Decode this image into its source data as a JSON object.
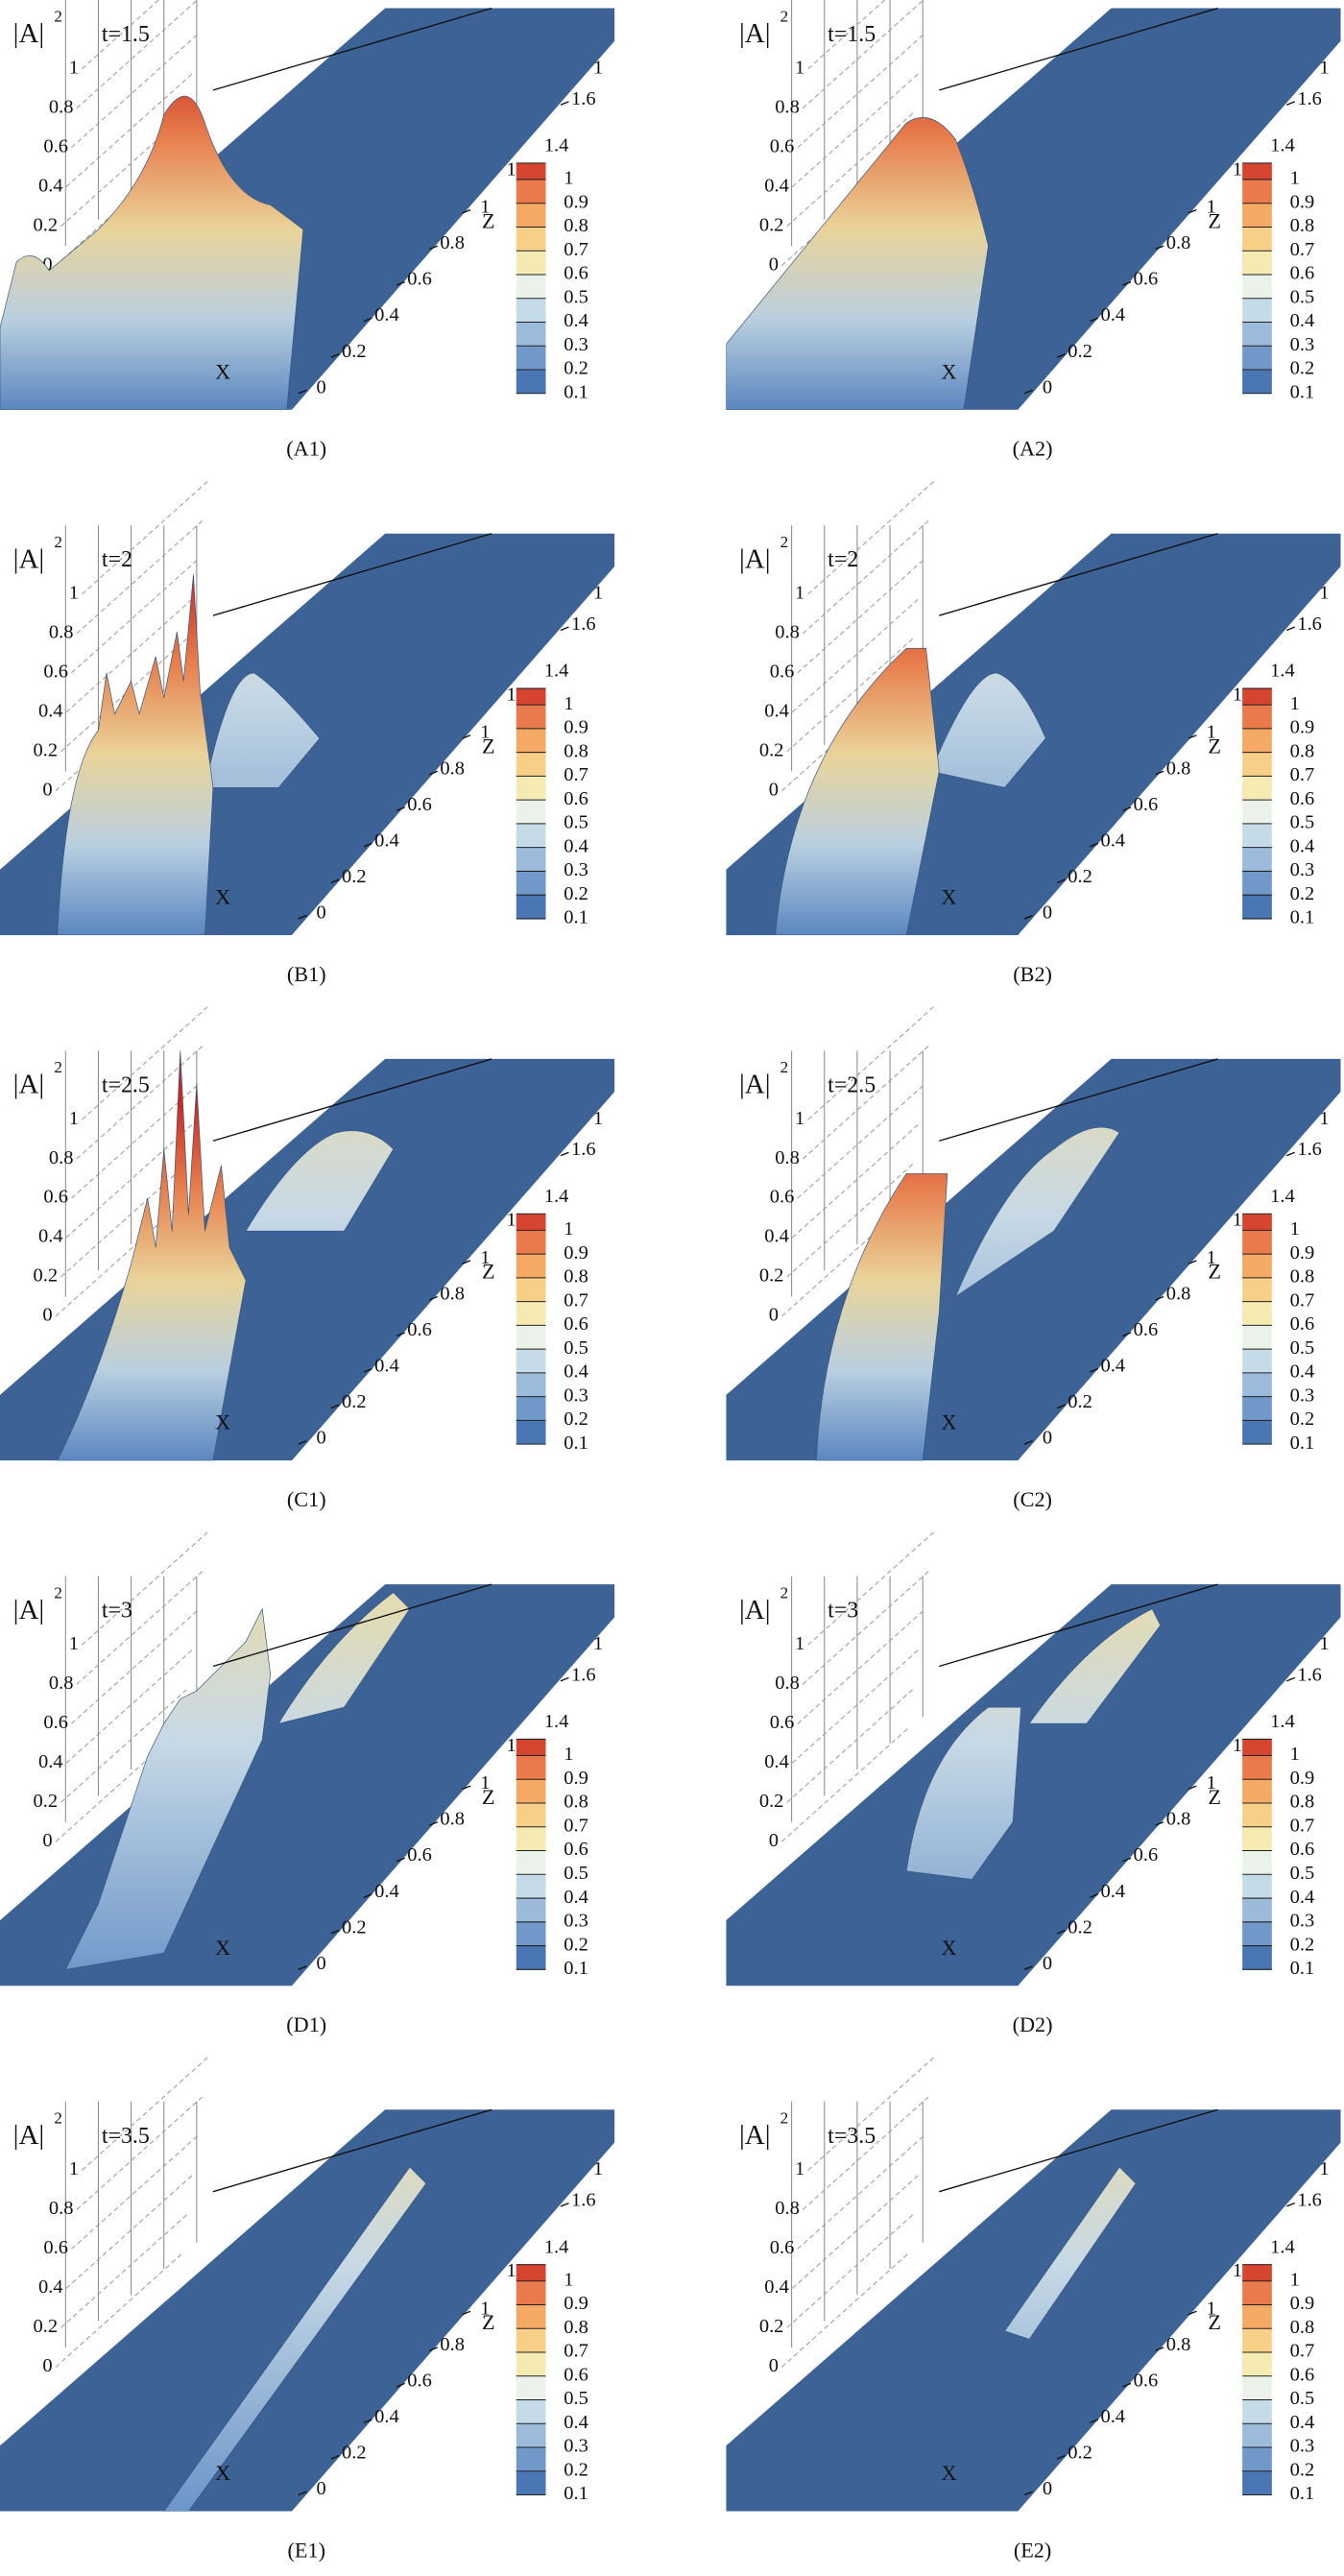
{
  "panels": [
    {
      "label": "(A1)",
      "time": "t=1.5"
    },
    {
      "label": "(A2)",
      "time": "t=1.5"
    },
    {
      "label": "(B1)",
      "time": "t=2"
    },
    {
      "label": "(B2)",
      "time": "t=2"
    },
    {
      "label": "(C1)",
      "time": "t=2.5"
    },
    {
      "label": "(C2)",
      "time": "t=2.5"
    },
    {
      "label": "(D1)",
      "time": "t=3"
    },
    {
      "label": "(D2)",
      "time": "t=3"
    },
    {
      "label": "(E1)",
      "time": "t=3.5"
    },
    {
      "label": "(E2)",
      "time": "t=3.5"
    }
  ],
  "axes": {
    "y_label": "|A|",
    "y_label_sup": "2",
    "yticks": [
      0,
      0.2,
      0.4,
      0.6,
      0.8,
      1
    ],
    "x_label": "X",
    "z_label": "Z",
    "zticks": [
      0,
      0.2,
      0.4,
      0.6,
      0.8,
      1,
      1.6
    ],
    "z_edge_labels": [
      "1",
      "1"
    ]
  },
  "colorbar": {
    "levels": [
      0.1,
      0.2,
      0.3,
      0.4,
      0.5,
      0.6,
      0.7,
      0.8,
      0.9,
      1,
      1.4
    ],
    "colors": [
      "#4a77b4",
      "#7099c9",
      "#9cbbdb",
      "#c6dbe8",
      "#eaf2ea",
      "#f6eab3",
      "#f8cf86",
      "#f4a965",
      "#ea7a4c",
      "#d6452f"
    ]
  }
}
